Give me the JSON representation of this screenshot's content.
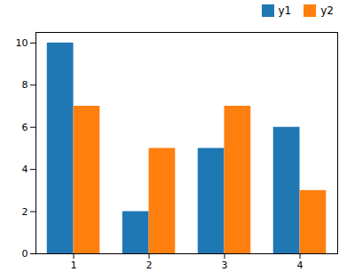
{
  "chart_data": {
    "type": "bar",
    "x": [
      1,
      2,
      3,
      4
    ],
    "series": [
      {
        "name": "y1",
        "color": "#1f77b4",
        "values": [
          10,
          2,
          5,
          6
        ]
      },
      {
        "name": "y2",
        "color": "#ff7f0e",
        "values": [
          7,
          5,
          7,
          3
        ]
      }
    ],
    "xlim": [
      0.5,
      4.5
    ],
    "xticks": [
      1,
      2,
      3,
      4
    ],
    "ylim": [
      0,
      10.5
    ],
    "yticks": [
      0,
      2,
      4,
      6,
      8,
      10
    ],
    "legend": "upper right"
  }
}
